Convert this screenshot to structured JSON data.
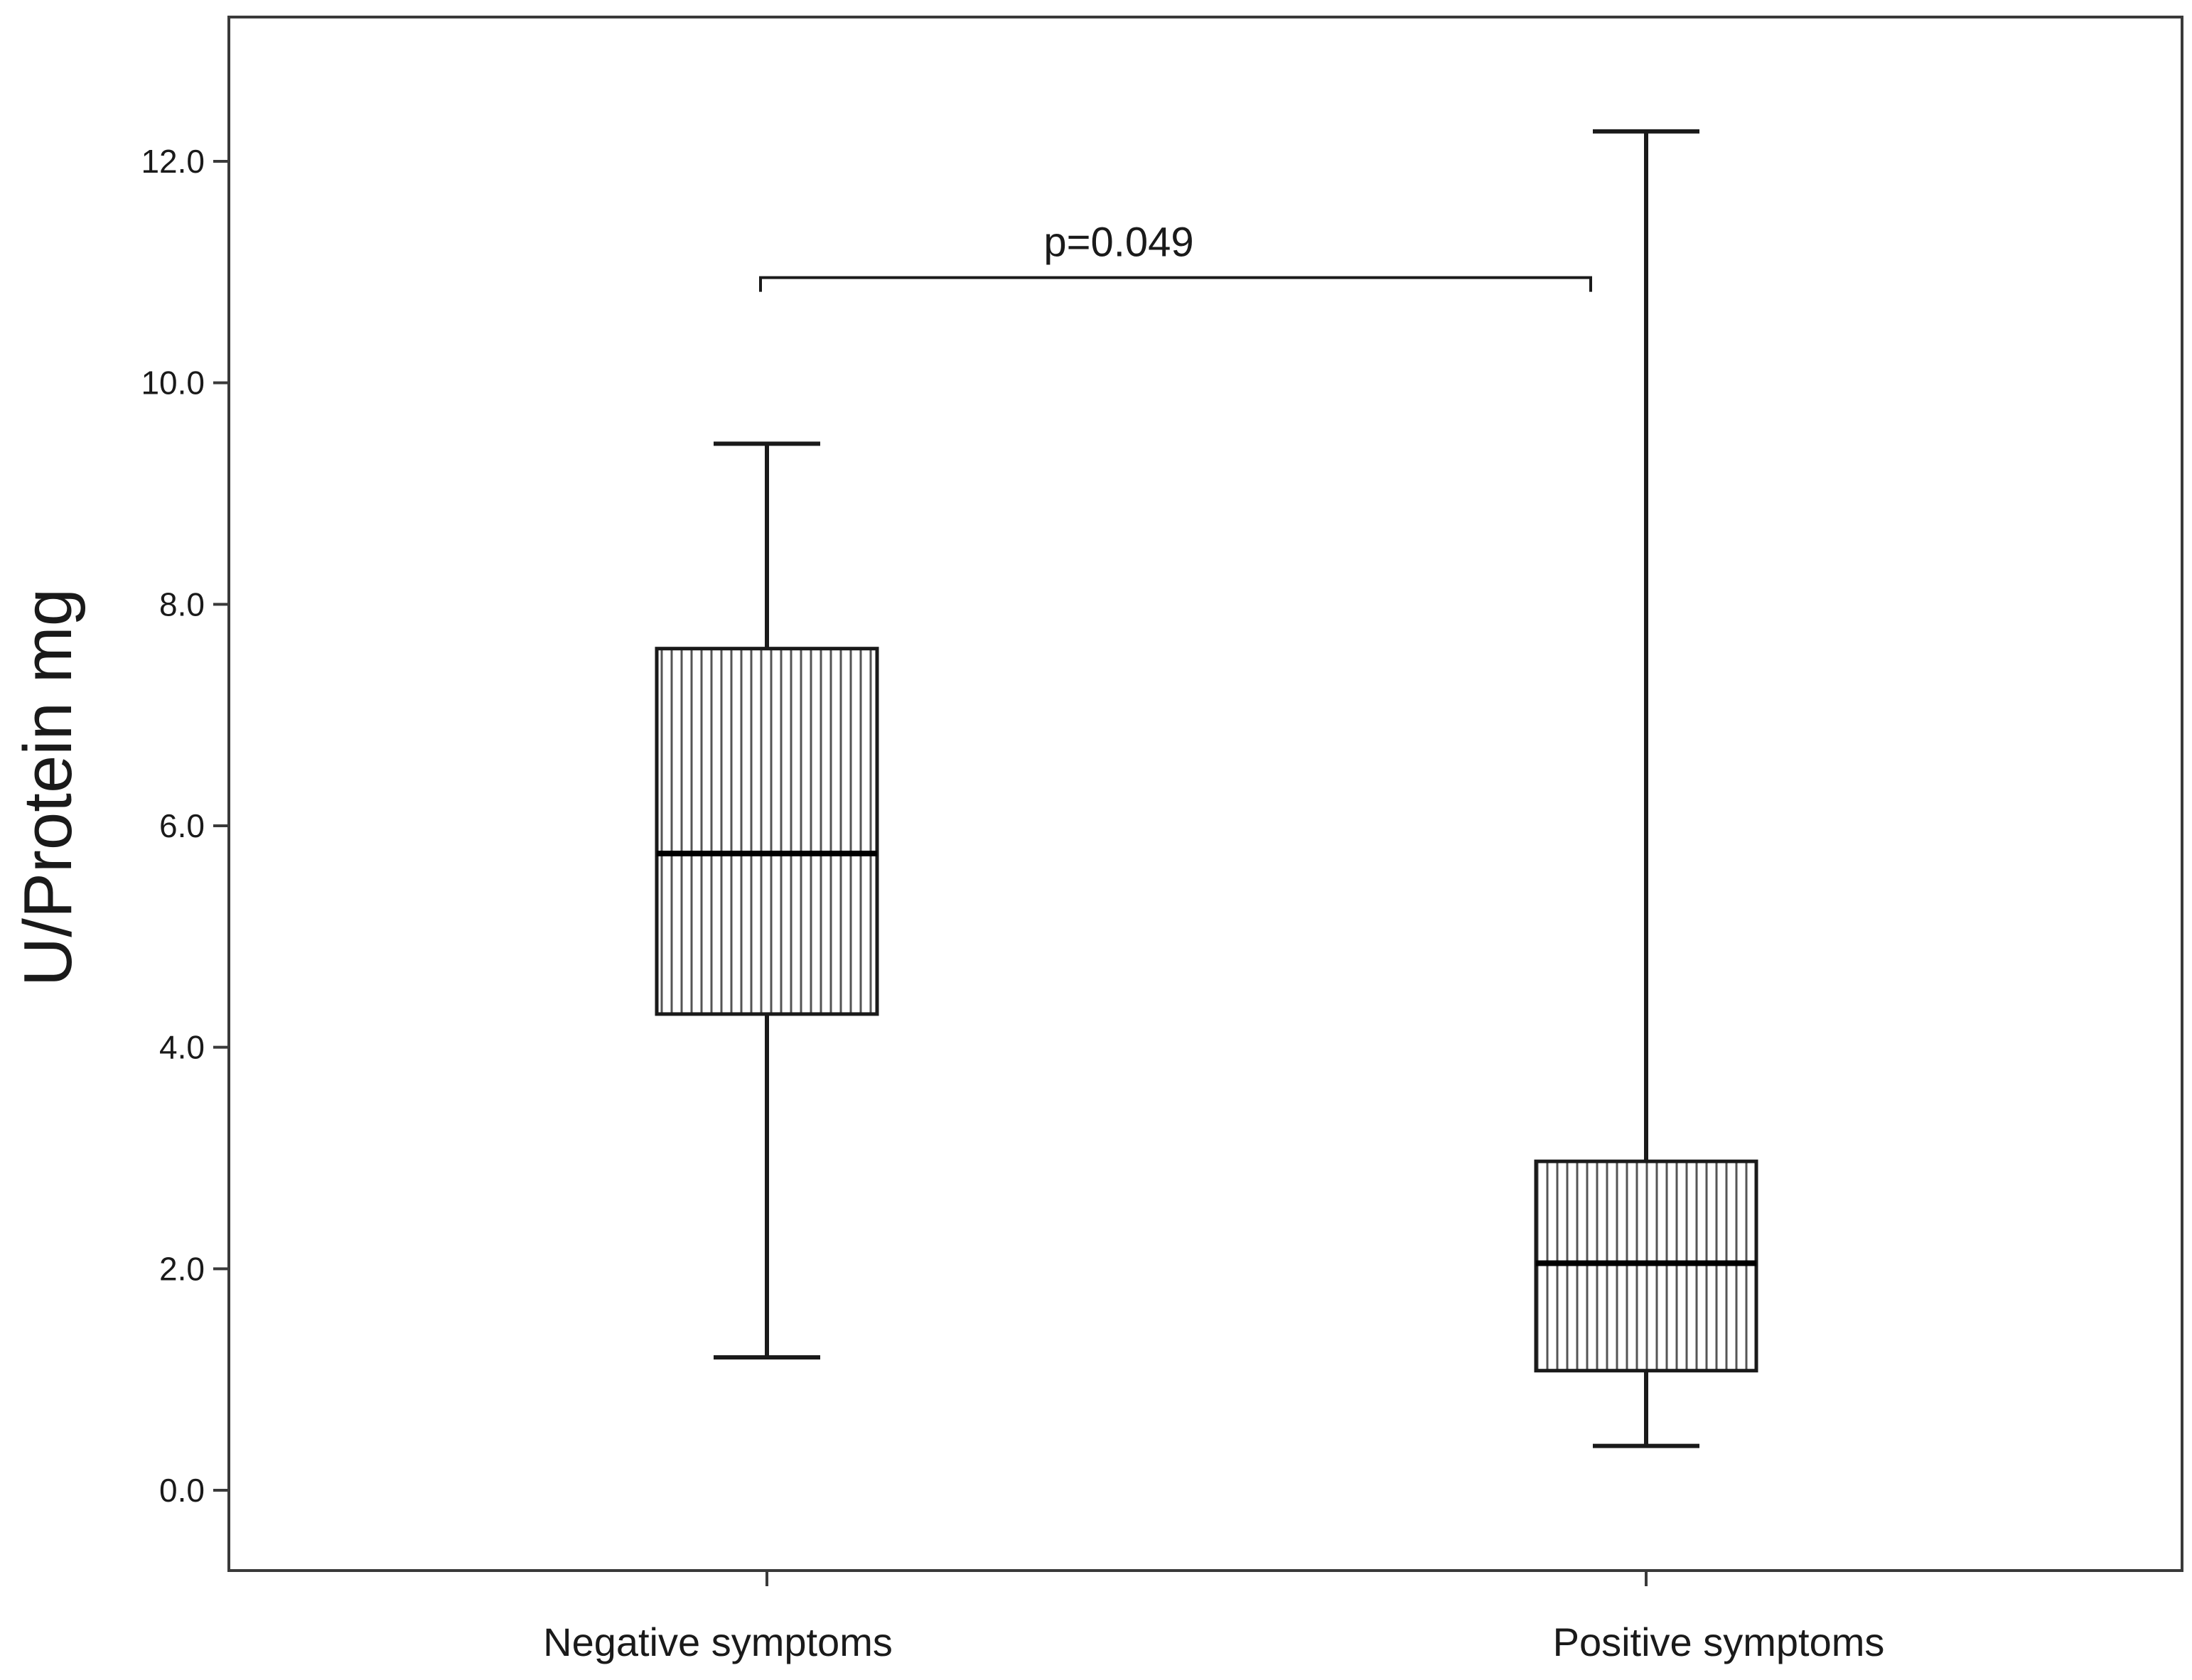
{
  "chart_data": {
    "type": "box",
    "ylabel": "U/Protein mg",
    "ylim": [
      -0.7,
      13.2
    ],
    "yticks": [
      0.0,
      2.0,
      4.0,
      6.0,
      8.0,
      10.0,
      12.0
    ],
    "ytick_labels": [
      "0.0",
      "2.0",
      "4.0",
      "6.0",
      "8.0",
      "10.0",
      "12.0"
    ],
    "categories": [
      "Negative symptoms",
      "Positive symptoms"
    ],
    "boxes": [
      {
        "category": "Negative symptoms",
        "min": 1.2,
        "q1": 4.3,
        "median": 5.75,
        "q3": 7.6,
        "max": 9.45
      },
      {
        "category": "Positive symptoms",
        "min": 0.4,
        "q1": 1.08,
        "median": 2.05,
        "q3": 2.97,
        "max": 12.27
      }
    ],
    "annotation": {
      "text": "p=0.049",
      "from": 0,
      "to": 1,
      "y": 10.95
    },
    "grid": false
  }
}
